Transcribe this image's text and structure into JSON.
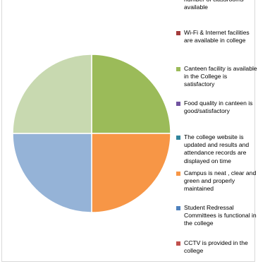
{
  "chart_data": {
    "type": "pie",
    "title": "",
    "slices": [
      {
        "label": "Wi-Fi & Internet facilities are available in college",
        "value": 0,
        "color": "#c0504d"
      },
      {
        "label": "Canteen facility is available in the College is satisfactory",
        "value": 25,
        "color": "#9bbb59"
      },
      {
        "label": "Food quality in canteen is good/satisfactory",
        "value": 0,
        "color": "#8064a2"
      },
      {
        "label": "The college website is updated and results and attendance records are displayed on time",
        "value": 0,
        "color": "#4bacc6"
      },
      {
        "label": "Campus is neat , clear and green and properly maintained",
        "value": 25,
        "color": "#f79646"
      },
      {
        "label": "Student Redressal Committees is functional in the college",
        "value": 25,
        "color": "#95b3d7"
      },
      {
        "label": "CCTV is provided in the college",
        "value": 0,
        "color": "#c0504d"
      },
      {
        "label": "",
        "value": 25,
        "color": "#c8d9b0"
      }
    ],
    "legend": {
      "placement": "right",
      "entries": [
        {
          "label": "number of classrooms available",
          "color": ""
        },
        {
          "label": "Wi-Fi & Internet facilities are available in college",
          "color": "#a33b3b"
        },
        {
          "label": "Canteen facility is available in the College is satisfactory",
          "color": "#9bbb59"
        },
        {
          "label": "Food quality in canteen is good/satisfactory",
          "color": "#7153a0"
        },
        {
          "label": "The college website is updated and results and attendance records are displayed on time",
          "color": "#31859c"
        },
        {
          "label": "Campus is neat , clear and green and properly maintained",
          "color": "#f79646"
        },
        {
          "label": "Student Redressal Committees is functional in the college",
          "color": "#4f81bd"
        },
        {
          "label": "CCTV is provided in the college",
          "color": "#c0504d"
        }
      ]
    }
  }
}
